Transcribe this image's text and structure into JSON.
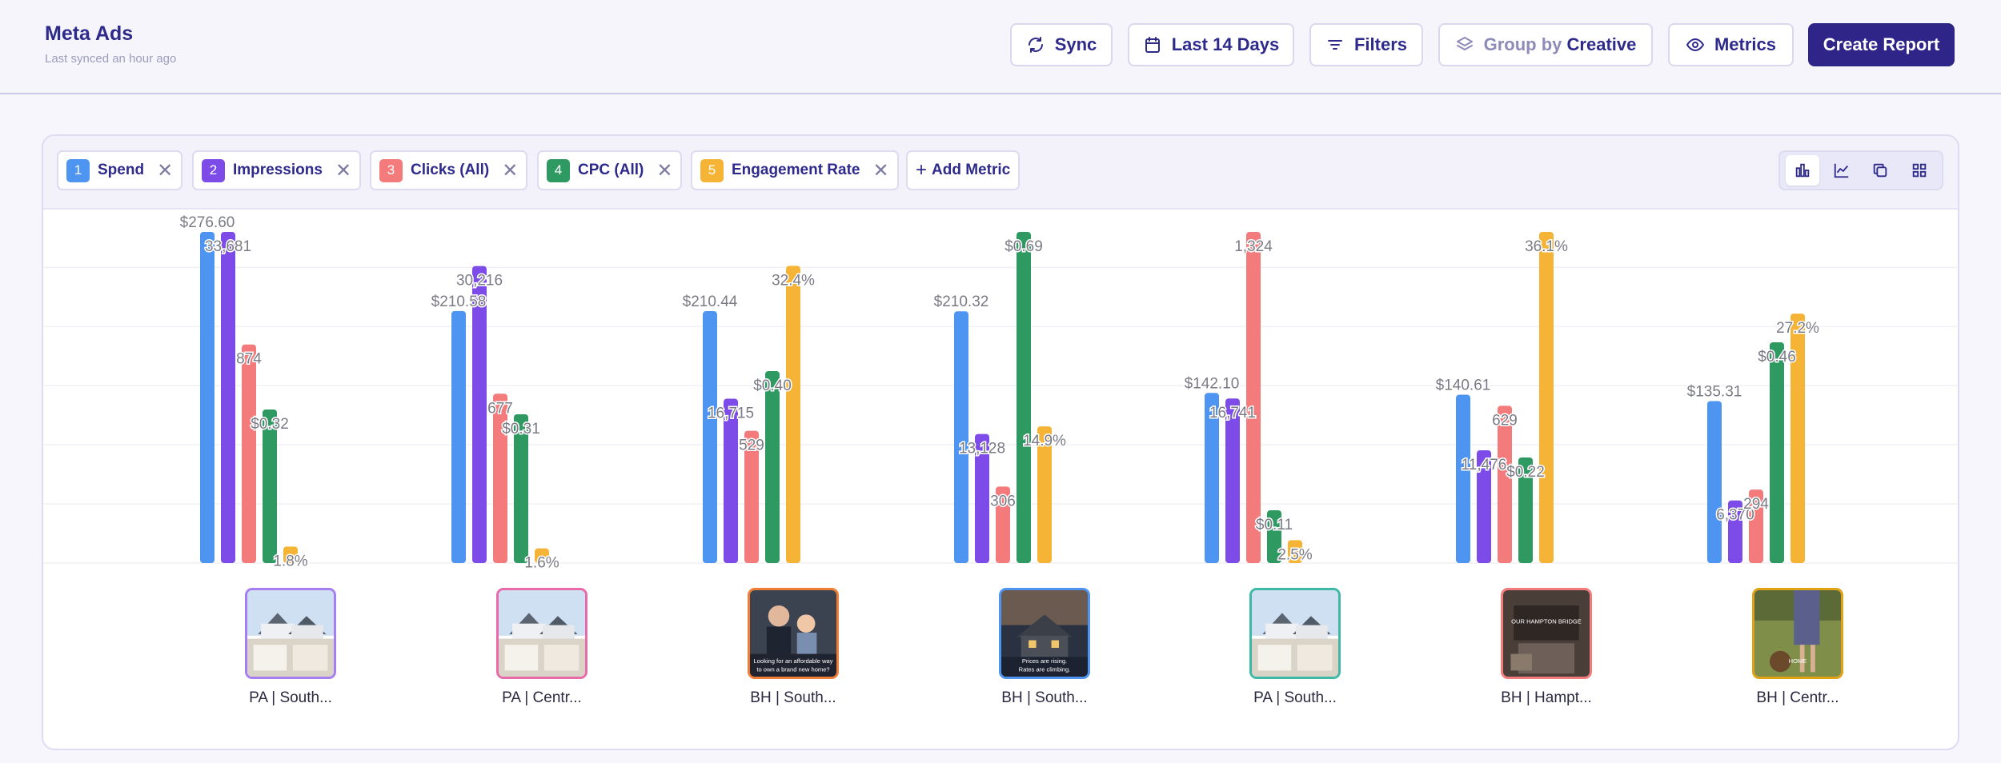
{
  "header": {
    "title": "Meta Ads",
    "subtitle": "Last synced an hour ago",
    "buttons": {
      "sync": "Sync",
      "date_range": "Last 14 Days",
      "filters": "Filters",
      "group_by_prefix": "Group by",
      "group_by_value": "Creative",
      "metrics": "Metrics",
      "create_report": "Create Report"
    }
  },
  "metrics_bar": {
    "chips": [
      {
        "num": "1",
        "label": "Spend",
        "color": "#4e95f2"
      },
      {
        "num": "2",
        "label": "Impressions",
        "color": "#7d4ce8"
      },
      {
        "num": "3",
        "label": "Clicks (All)",
        "color": "#f47b7b"
      },
      {
        "num": "4",
        "label": "CPC (All)",
        "color": "#2e9a62"
      },
      {
        "num": "5",
        "label": "Engagement Rate",
        "color": "#f6b436"
      }
    ],
    "add_metric": "Add Metric"
  },
  "chart_data": {
    "type": "bar",
    "categories": [
      "PA | South...",
      "PA | Centr...",
      "BH | South...",
      "BH | South...",
      "PA | South...",
      "BH | Hampt...",
      "BH | Centr..."
    ],
    "series": [
      {
        "name": "Spend",
        "color": "#4e95f2",
        "values": [
          276.6,
          210.58,
          210.44,
          210.32,
          142.1,
          140.61,
          135.31
        ],
        "labels": [
          "$276.60",
          "$210.58",
          "$210.44",
          "$210.32",
          "$142.10",
          "$140.61",
          "$135.31"
        ]
      },
      {
        "name": "Impressions",
        "color": "#7d4ce8",
        "values": [
          33681,
          30216,
          16715,
          13128,
          16741,
          11476,
          6370
        ],
        "labels": [
          "33,681",
          "30,216",
          "16,715",
          "13,128",
          "16,741",
          "11,476",
          "6,370"
        ]
      },
      {
        "name": "Clicks (All)",
        "color": "#f47b7b",
        "values": [
          874,
          677,
          529,
          306,
          1324,
          629,
          294
        ],
        "labels": [
          "874",
          "677",
          "529",
          "306",
          "1,324",
          "629",
          "294"
        ]
      },
      {
        "name": "CPC (All)",
        "color": "#2e9a62",
        "values": [
          0.32,
          0.31,
          0.4,
          0.69,
          0.11,
          0.22,
          0.46
        ],
        "labels": [
          "$0.32",
          "$0.31",
          "$0.40",
          "$0.69",
          "$0.11",
          "$0.22",
          "$0.46"
        ]
      },
      {
        "name": "Engagement Rate",
        "color": "#f6b436",
        "values": [
          1.8,
          1.6,
          32.4,
          14.9,
          2.5,
          36.1,
          27.2
        ],
        "labels": [
          "1.8%",
          "1.6%",
          "32.4%",
          "14.9%",
          "2.5%",
          "36.1%",
          "27.2%"
        ]
      }
    ],
    "normalization": "each series scaled to its own maximum",
    "grid": true
  },
  "creatives": [
    {
      "caption": "PA | South...",
      "border": "#a77ef0",
      "thumb": "house"
    },
    {
      "caption": "PA | Centr...",
      "border": "#e96aa8",
      "thumb": "house"
    },
    {
      "caption": "BH | South...",
      "border": "#ef7d35",
      "thumb": "family",
      "overlay": [
        "Looking for an affordable way",
        "to own a brand new home?"
      ]
    },
    {
      "caption": "BH | South...",
      "border": "#4e95f2",
      "thumb": "dusk-house",
      "overlay": [
        "Prices are rising.",
        "Rates are climbing."
      ]
    },
    {
      "caption": "PA | South...",
      "border": "#3fb9a6",
      "thumb": "house"
    },
    {
      "caption": "BH | Hampt...",
      "border": "#f47b7b",
      "thumb": "interior",
      "overlay": [
        "OUR HAMPTON BRIDGE"
      ]
    },
    {
      "caption": "BH | Centr...",
      "border": "#e0a315",
      "thumb": "outdoor",
      "overlay": [
        "HOME"
      ]
    }
  ]
}
